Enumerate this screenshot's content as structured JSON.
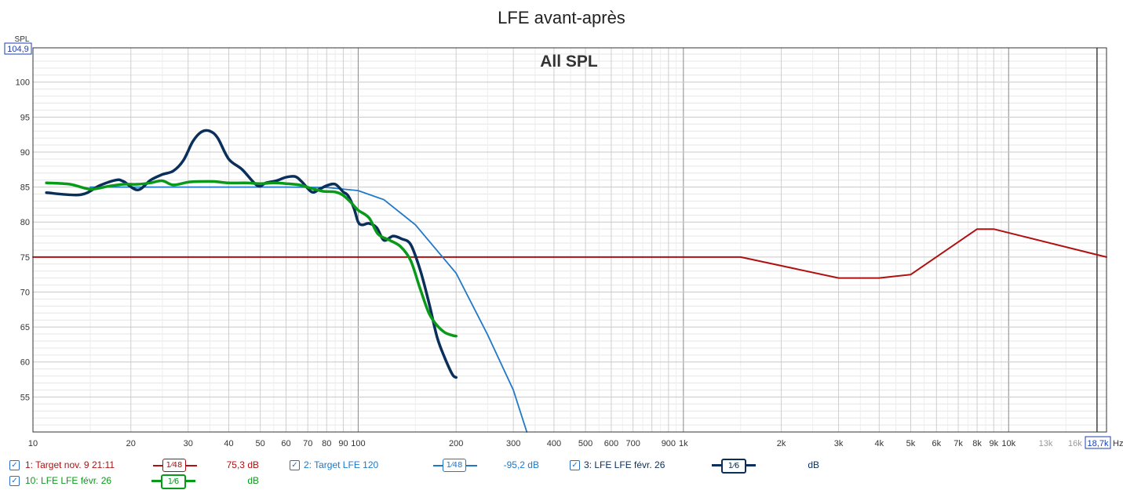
{
  "chart_data": {
    "type": "line",
    "title": "LFE avant-après",
    "overlay_label": "All SPL",
    "ylabel": "SPL",
    "xlabel": "Hz",
    "x_scale": "log",
    "xlim": [
      10,
      20000
    ],
    "ylim": [
      50,
      104.9
    ],
    "ymax_label": "104,9",
    "x_cursor_label": "18,7k",
    "x_cursor": 18700,
    "grid": true,
    "y_ticks": [
      55,
      60,
      65,
      70,
      75,
      80,
      85,
      90,
      95,
      100
    ],
    "x_ticks": [
      {
        "v": 10,
        "l": "10"
      },
      {
        "v": 20,
        "l": "20"
      },
      {
        "v": 30,
        "l": "30"
      },
      {
        "v": 40,
        "l": "40"
      },
      {
        "v": 50,
        "l": "50"
      },
      {
        "v": 60,
        "l": "60"
      },
      {
        "v": 70,
        "l": "70"
      },
      {
        "v": 80,
        "l": "80"
      },
      {
        "v": 90,
        "l": "90"
      },
      {
        "v": 100,
        "l": "100"
      },
      {
        "v": 200,
        "l": "200"
      },
      {
        "v": 300,
        "l": "300"
      },
      {
        "v": 400,
        "l": "400"
      },
      {
        "v": 500,
        "l": "500"
      },
      {
        "v": 600,
        "l": "600"
      },
      {
        "v": 700,
        "l": "700"
      },
      {
        "v": 900,
        "l": "900"
      },
      {
        "v": 1000,
        "l": "1k"
      },
      {
        "v": 2000,
        "l": "2k"
      },
      {
        "v": 3000,
        "l": "3k"
      },
      {
        "v": 4000,
        "l": "4k"
      },
      {
        "v": 5000,
        "l": "5k"
      },
      {
        "v": 6000,
        "l": "6k"
      },
      {
        "v": 7000,
        "l": "7k"
      },
      {
        "v": 8000,
        "l": "8k"
      },
      {
        "v": 9000,
        "l": "9k"
      },
      {
        "v": 10000,
        "l": "10k"
      },
      {
        "v": 13000,
        "l": "13k"
      },
      {
        "v": 16000,
        "l": "16k"
      }
    ],
    "series": [
      {
        "name": "1: Target nov. 9 21:11",
        "color": "#b01010",
        "width": 2,
        "x": [
          10,
          1500,
          3000,
          4000,
          5000,
          8000,
          9000,
          20000
        ],
        "y": [
          75,
          75,
          72,
          72,
          72.5,
          79,
          79,
          75
        ]
      },
      {
        "name": "2: Target LFE 120",
        "color": "#1f78c8",
        "width": 1.8,
        "x": [
          15,
          60,
          80,
          100,
          120,
          150,
          200,
          250,
          300,
          330
        ],
        "y": [
          85,
          85,
          84.95,
          84.5,
          83.2,
          79.6,
          72.7,
          63.9,
          56,
          50
        ]
      },
      {
        "name": "3: LFE LFE févr. 26",
        "color": "#0a2f5a",
        "width": 3.5,
        "x": [
          11,
          14,
          16,
          18,
          19,
          21,
          23,
          25,
          27,
          29,
          31,
          33,
          35,
          37,
          40,
          44,
          49,
          52,
          56,
          60,
          64,
          67,
          72,
          76,
          80,
          85,
          90,
          93,
          97,
          100,
          103,
          108,
          114,
          120,
          128,
          136,
          145,
          155,
          165,
          175,
          185,
          195,
          200
        ],
        "y": [
          84.2,
          83.9,
          85.2,
          86,
          85.8,
          84.6,
          86,
          86.8,
          87.3,
          88.8,
          91.5,
          92.9,
          93,
          92,
          89,
          87.5,
          85.2,
          85.6,
          85.9,
          86.4,
          86.5,
          85.8,
          84.3,
          84.7,
          85.2,
          85.4,
          84.3,
          83.8,
          82,
          80,
          79.6,
          79.8,
          79.2,
          77.4,
          78,
          77.6,
          76.8,
          73.2,
          68.5,
          63.5,
          60.5,
          58.2,
          57.8
        ]
      },
      {
        "name": "10: LFE LFE févr. 26",
        "color": "#0a9a1a",
        "width": 3.5,
        "x": [
          11,
          13,
          15,
          17,
          19,
          21,
          23,
          25,
          27,
          30,
          33,
          36,
          40,
          45,
          50,
          55,
          60,
          66,
          72,
          78,
          85,
          90,
          95,
          100,
          108,
          115,
          125,
          135,
          145,
          155,
          165,
          175,
          185,
          195,
          200
        ],
        "y": [
          85.6,
          85.4,
          84.7,
          85.1,
          85.4,
          85.4,
          85.6,
          85.9,
          85.3,
          85.7,
          85.8,
          85.8,
          85.6,
          85.6,
          85.5,
          85.6,
          85.5,
          85.3,
          84.8,
          84.4,
          84.3,
          83.8,
          82.8,
          81.7,
          80.6,
          78.3,
          77.4,
          76.5,
          74.5,
          70.5,
          67,
          65.2,
          64.2,
          63.8,
          63.7
        ]
      }
    ]
  },
  "legend": {
    "items": [
      {
        "id": "s1",
        "checked": "✓",
        "label": "1: Target nov. 9 21:11",
        "smoothing": "1⁄48",
        "value": "75,3 dB",
        "color": "#b01010"
      },
      {
        "id": "s2",
        "checked": "✓",
        "label": "2: Target LFE 120",
        "smoothing": "1⁄48",
        "value": "-95,2 dB",
        "color": "#1f78c8"
      },
      {
        "id": "s3",
        "checked": "✓",
        "label": "3: LFE LFE févr. 26",
        "smoothing": "1⁄6",
        "value": "dB",
        "color": "#0a2f5a"
      },
      {
        "id": "s10",
        "checked": "✓",
        "label": "10: LFE LFE févr. 26",
        "smoothing": "1⁄6",
        "value": "dB",
        "color": "#0a9a1a"
      }
    ]
  }
}
